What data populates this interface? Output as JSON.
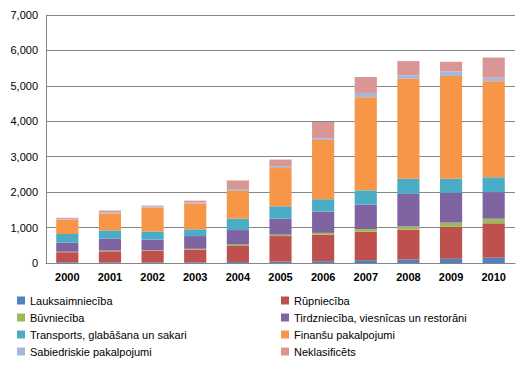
{
  "chart_data": {
    "type": "bar",
    "stacked": true,
    "grid": true,
    "legend": "bottom",
    "categories": [
      "2000",
      "2001",
      "2002",
      "2003",
      "2004",
      "2005",
      "2006",
      "2007",
      "2008",
      "2009",
      "2010"
    ],
    "ylim": [
      0,
      7000
    ],
    "yticks": [
      0,
      1000,
      2000,
      3000,
      4000,
      5000,
      6000,
      7000
    ],
    "series": [
      {
        "name": "Lauksaimniecība",
        "color": "#4f81bd",
        "values": [
          20,
          20,
          20,
          20,
          30,
          40,
          50,
          80,
          100,
          120,
          150
        ]
      },
      {
        "name": "Rūpniecība",
        "color": "#c0504d",
        "values": [
          280,
          310,
          320,
          360,
          450,
          720,
          750,
          800,
          840,
          900,
          970
        ]
      },
      {
        "name": "Būvniecība",
        "color": "#9bbb59",
        "values": [
          20,
          20,
          20,
          20,
          40,
          40,
          50,
          80,
          90,
          120,
          130
        ]
      },
      {
        "name": "Tirdzniecība, viesnīcas un restorāni",
        "color": "#8064a2",
        "values": [
          250,
          340,
          300,
          360,
          410,
          450,
          600,
          690,
          920,
          840,
          750
        ]
      },
      {
        "name": "Transports, glabāšana un sakari",
        "color": "#4bacc6",
        "values": [
          250,
          230,
          230,
          190,
          320,
          350,
          350,
          400,
          430,
          400,
          420
        ]
      },
      {
        "name": "Finanšu pakalpojumi",
        "color": "#f79646",
        "values": [
          410,
          480,
          670,
          730,
          800,
          1080,
          1670,
          2630,
          2820,
          2900,
          2710
        ]
      },
      {
        "name": "Sabiedriskie pakalpojumi",
        "color": "#a5b7da",
        "values": [
          20,
          30,
          30,
          30,
          40,
          40,
          50,
          120,
          100,
          130,
          100
        ]
      },
      {
        "name": "Neklasificēts",
        "color": "#d99694",
        "values": [
          30,
          50,
          30,
          50,
          240,
          200,
          460,
          450,
          400,
          270,
          570
        ]
      }
    ]
  }
}
